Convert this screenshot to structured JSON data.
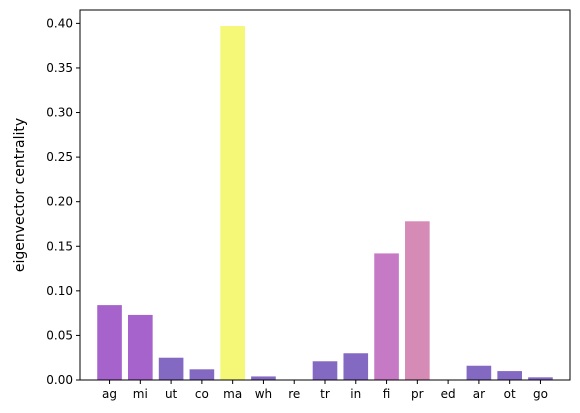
{
  "chart_data": {
    "type": "bar",
    "title": "",
    "xlabel": "",
    "ylabel": "eigenvector centrality",
    "ylim": [
      0,
      0.415
    ],
    "grid": false,
    "yticks": [
      0.0,
      0.05,
      0.1,
      0.15,
      0.2,
      0.25,
      0.3,
      0.35,
      0.4
    ],
    "ytick_labels": [
      "0.00",
      "0.05",
      "0.10",
      "0.15",
      "0.20",
      "0.25",
      "0.30",
      "0.35",
      "0.40"
    ],
    "categories": [
      "ag",
      "mi",
      "ut",
      "co",
      "ma",
      "wh",
      "re",
      "tr",
      "in",
      "fi",
      "pr",
      "ed",
      "ar",
      "ot",
      "go"
    ],
    "values": [
      0.084,
      0.073,
      0.025,
      0.012,
      0.397,
      0.004,
      0.0,
      0.021,
      0.03,
      0.142,
      0.178,
      0.0,
      0.016,
      0.01,
      0.003
    ],
    "colors": [
      "#a563cb",
      "#a563cb",
      "#8469c2",
      "#8469c2",
      "#f5f776",
      "#8469c2",
      "#8469c2",
      "#8469c2",
      "#8469c2",
      "#c67ac6",
      "#d68ab6",
      "#8469c2",
      "#8469c2",
      "#8469c2",
      "#8469c2"
    ]
  }
}
